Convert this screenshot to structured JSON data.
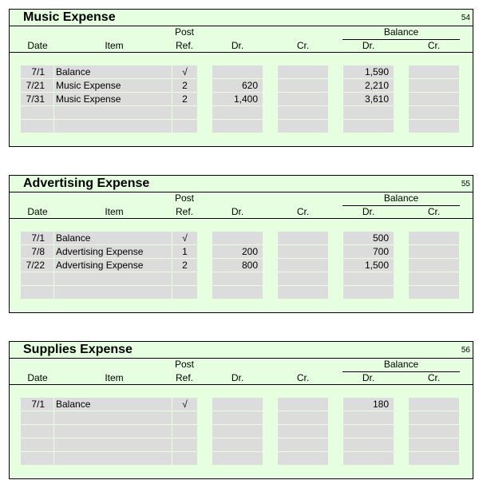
{
  "headers": {
    "post": "Post",
    "ref": "Ref.",
    "balance": "Balance",
    "date": "Date",
    "item": "Item",
    "dr": "Dr.",
    "cr": "Cr.",
    "bal_dr": "Dr.",
    "bal_cr": "Cr."
  },
  "accounts": [
    {
      "name": "Music Expense",
      "number": "54",
      "rows": [
        {
          "date": "7/1",
          "item": "Balance",
          "ref": "√",
          "dr": "",
          "cr": "",
          "bal_dr": "1,590",
          "bal_cr": ""
        },
        {
          "date": "7/21",
          "item": "Music Expense",
          "ref": "2",
          "dr": "620",
          "cr": "",
          "bal_dr": "2,210",
          "bal_cr": ""
        },
        {
          "date": "7/31",
          "item": "Music Expense",
          "ref": "2",
          "dr": "1,400",
          "cr": "",
          "bal_dr": "3,610",
          "bal_cr": ""
        },
        {
          "date": "",
          "item": "",
          "ref": "",
          "dr": "",
          "cr": "",
          "bal_dr": "",
          "bal_cr": ""
        },
        {
          "date": "",
          "item": "",
          "ref": "",
          "dr": "",
          "cr": "",
          "bal_dr": "",
          "bal_cr": ""
        }
      ]
    },
    {
      "name": "Advertising Expense",
      "number": "55",
      "rows": [
        {
          "date": "7/1",
          "item": "Balance",
          "ref": "√",
          "dr": "",
          "cr": "",
          "bal_dr": "500",
          "bal_cr": ""
        },
        {
          "date": "7/8",
          "item": "Advertising Expense",
          "ref": "1",
          "dr": "200",
          "cr": "",
          "bal_dr": "700",
          "bal_cr": ""
        },
        {
          "date": "7/22",
          "item": "Advertising Expense",
          "ref": "2",
          "dr": "800",
          "cr": "",
          "bal_dr": "1,500",
          "bal_cr": ""
        },
        {
          "date": "",
          "item": "",
          "ref": "",
          "dr": "",
          "cr": "",
          "bal_dr": "",
          "bal_cr": ""
        },
        {
          "date": "",
          "item": "",
          "ref": "",
          "dr": "",
          "cr": "",
          "bal_dr": "",
          "bal_cr": ""
        }
      ]
    },
    {
      "name": "Supplies Expense",
      "number": "56",
      "rows": [
        {
          "date": "7/1",
          "item": "Balance",
          "ref": "√",
          "dr": "",
          "cr": "",
          "bal_dr": "180",
          "bal_cr": ""
        },
        {
          "date": "",
          "item": "",
          "ref": "",
          "dr": "",
          "cr": "",
          "bal_dr": "",
          "bal_cr": ""
        },
        {
          "date": "",
          "item": "",
          "ref": "",
          "dr": "",
          "cr": "",
          "bal_dr": "",
          "bal_cr": ""
        },
        {
          "date": "",
          "item": "",
          "ref": "",
          "dr": "",
          "cr": "",
          "bal_dr": "",
          "bal_cr": ""
        },
        {
          "date": "",
          "item": "",
          "ref": "",
          "dr": "",
          "cr": "",
          "bal_dr": "",
          "bal_cr": ""
        }
      ]
    }
  ]
}
